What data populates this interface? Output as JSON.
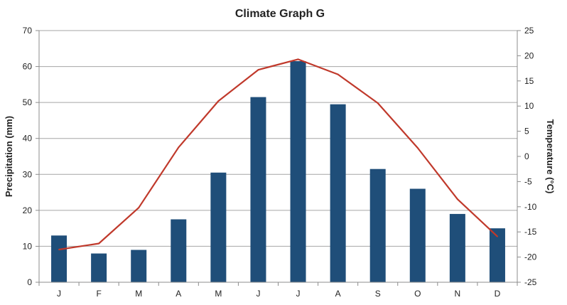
{
  "chart_data": {
    "type": "bar+line",
    "title": "Climate Graph G",
    "categories": [
      "J",
      "F",
      "M",
      "A",
      "M",
      "J",
      "J",
      "A",
      "S",
      "O",
      "N",
      "D"
    ],
    "ylabel": "Precipitation (mm)",
    "y2label": "Temperature (°C)",
    "ylim": [
      0,
      70
    ],
    "y2lim": [
      -25,
      25
    ],
    "yticks": [
      0,
      10,
      20,
      30,
      40,
      50,
      60,
      70
    ],
    "y2ticks": [
      25,
      20,
      15,
      10,
      5,
      0,
      -5,
      -10,
      -15,
      -20,
      -25
    ],
    "grid": true,
    "series": [
      {
        "kind": "bar",
        "axis": "left",
        "color": "#1f4e79",
        "values": [
          13,
          8,
          9,
          17.5,
          30.5,
          51.5,
          61.5,
          49.5,
          31.5,
          26,
          19,
          15
        ]
      },
      {
        "kind": "line",
        "axis": "right",
        "color": "#c0392b",
        "values": [
          -18.5,
          -17.3,
          -10.2,
          1.8,
          11,
          17.2,
          19.3,
          16.3,
          10.6,
          1.7,
          -8.5,
          -15.9
        ]
      }
    ]
  }
}
